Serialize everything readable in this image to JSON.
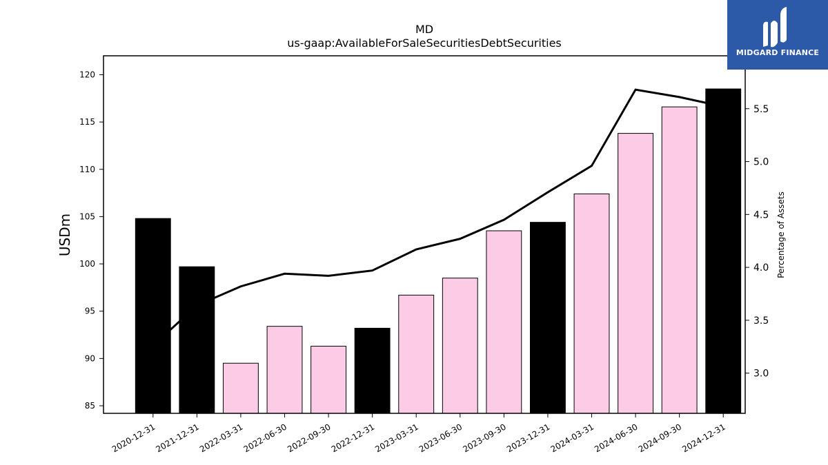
{
  "chart_data": {
    "type": "bar",
    "title": "MD",
    "subtitle": "us-gaap:AvailableForSaleSecuritiesDebtSecurities",
    "ylabel": "USDm",
    "ylabel_right": "Percentage of Assets",
    "categories": [
      "2020-12-31",
      "2021-12-31",
      "2022-03-31",
      "2022-06-30",
      "2022-09-30",
      "2022-12-31",
      "2023-03-31",
      "2023-06-30",
      "2023-09-30",
      "2023-12-31",
      "2024-03-31",
      "2024-06-30",
      "2024-09-30",
      "2024-12-31"
    ],
    "values": [
      104.8,
      99.7,
      89.5,
      93.4,
      91.3,
      93.2,
      96.7,
      98.5,
      103.5,
      104.4,
      107.4,
      113.8,
      116.6,
      118.5
    ],
    "bar_colors": [
      "#000000",
      "#000000",
      "#fccbe6",
      "#fccbe6",
      "#fccbe6",
      "#000000",
      "#fccbe6",
      "#fccbe6",
      "#fccbe6",
      "#000000",
      "#fccbe6",
      "#fccbe6",
      "#fccbe6",
      "#000000"
    ],
    "ylim": [
      84.2,
      122.0
    ],
    "yticks": [
      85,
      90,
      95,
      100,
      105,
      110,
      115,
      120
    ],
    "series": [
      {
        "axis": "right",
        "type": "line",
        "values": [
          3.26,
          3.64,
          3.82,
          3.94,
          3.92,
          3.97,
          4.17,
          4.27,
          4.45,
          4.71,
          4.96,
          5.68,
          5.61,
          5.52
        ]
      }
    ],
    "ylim_right": [
      2.62,
      6.0
    ],
    "yticks_right": [
      3.0,
      3.5,
      4.0,
      4.5,
      5.0,
      5.5
    ],
    "grid": false
  },
  "logo": {
    "text": "MIDGARD FINANCE"
  }
}
